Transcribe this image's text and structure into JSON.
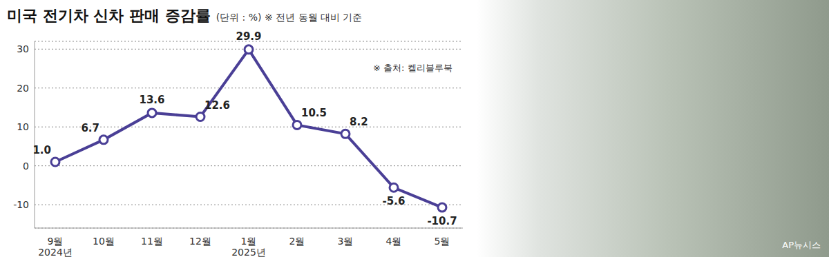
{
  "chart_data": {
    "type": "line",
    "title": "미국 전기차 신차 판매 증감률",
    "subtitle": "(단위 : %) ※ 전년 동월 대비 기준",
    "annotations": [
      "※ 출처: 켈리블루북",
      "AP뉴시스"
    ],
    "categories": [
      "9월\n2024년",
      "10월",
      "11월",
      "12월",
      "1월\n2025년",
      "2월",
      "3월",
      "4월",
      "5월"
    ],
    "values": [
      1.0,
      6.7,
      13.6,
      12.6,
      29.9,
      10.5,
      8.2,
      -5.6,
      -10.7
    ],
    "value_labels": [
      "1.0",
      "6.7",
      "13.6",
      "12.6",
      "29.9",
      "10.5",
      "8.2",
      "-5.6",
      "-10.7"
    ],
    "data_labels": true,
    "color": "#4a3f96",
    "marker": "circle",
    "line_style": "solid",
    "ylim": [
      -16,
      32
    ],
    "yticks": [
      -10,
      0,
      10,
      20,
      30
    ],
    "grid": true
  }
}
